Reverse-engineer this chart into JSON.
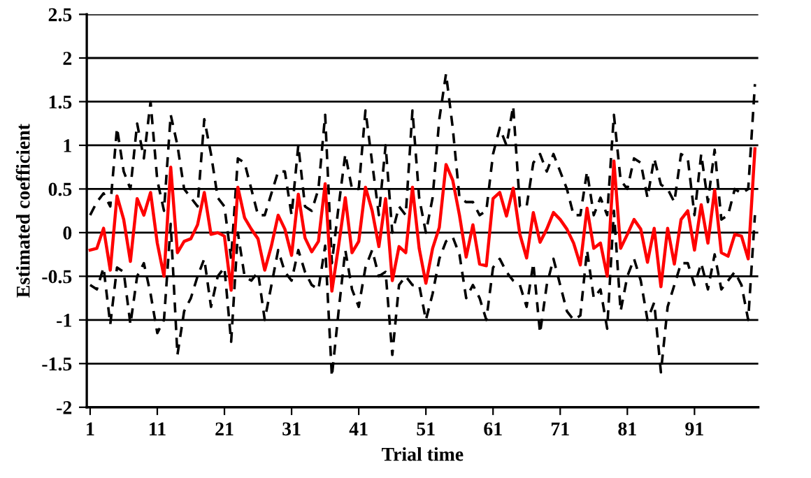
{
  "chart_data": {
    "type": "line",
    "xlabel": "Trial time",
    "ylabel": "Estimated coefficient",
    "x": [
      1,
      2,
      3,
      4,
      5,
      6,
      7,
      8,
      9,
      10,
      11,
      12,
      13,
      14,
      15,
      16,
      17,
      18,
      19,
      20,
      21,
      22,
      23,
      24,
      25,
      26,
      27,
      28,
      29,
      30,
      31,
      32,
      33,
      34,
      35,
      36,
      37,
      38,
      39,
      40,
      41,
      42,
      43,
      44,
      45,
      46,
      47,
      48,
      49,
      50,
      51,
      52,
      53,
      54,
      55,
      56,
      57,
      58,
      59,
      60,
      61,
      62,
      63,
      64,
      65,
      66,
      67,
      68,
      69,
      70,
      71,
      72,
      73,
      74,
      75,
      76,
      77,
      78,
      79,
      80,
      81,
      82,
      83,
      84,
      85,
      86,
      87,
      88,
      89,
      90,
      91,
      92,
      93,
      94,
      95,
      96,
      97,
      98,
      99,
      100
    ],
    "xlim": [
      0.5,
      100.5
    ],
    "xticks": [
      1,
      11,
      21,
      31,
      41,
      51,
      61,
      71,
      81,
      91
    ],
    "ylim": [
      -2,
      2.5
    ],
    "yticks": [
      -2,
      -1.5,
      -1,
      -0.5,
      0,
      0.5,
      1,
      1.5,
      2,
      2.5
    ],
    "grid": "y",
    "marker": "none",
    "series": [
      {
        "color": "#000000",
        "line_style": "dashed",
        "values": [
          0.2,
          0.35,
          0.45,
          0.3,
          1.2,
          0.7,
          0.5,
          1.25,
          0.85,
          1.5,
          0.6,
          0.25,
          1.35,
          1.0,
          0.5,
          0.4,
          0.3,
          1.3,
          0.9,
          0.4,
          0.3,
          -0.3,
          0.85,
          0.8,
          0.5,
          0.2,
          0.2,
          0.45,
          0.7,
          0.7,
          0.2,
          1.0,
          0.3,
          0.25,
          0.5,
          1.35,
          -0.35,
          0.3,
          0.9,
          0.5,
          0.5,
          1.4,
          0.8,
          0.2,
          1.0,
          0.0,
          0.3,
          0.2,
          1.4,
          0.4,
          0.0,
          0.4,
          1.3,
          1.82,
          1.2,
          0.4,
          0.35,
          0.35,
          0.2,
          0.25,
          0.9,
          1.2,
          1.0,
          1.45,
          0.3,
          0.3,
          0.8,
          0.9,
          0.7,
          0.9,
          0.7,
          0.5,
          0.2,
          0.2,
          0.7,
          0.2,
          0.4,
          0.2,
          1.35,
          0.6,
          0.5,
          0.85,
          0.8,
          0.4,
          0.85,
          0.55,
          0.5,
          0.35,
          0.9,
          0.85,
          0.2,
          0.9,
          0.35,
          0.95,
          0.15,
          0.2,
          0.5,
          0.45,
          0.5,
          1.7
        ]
      },
      {
        "color": "#000000",
        "line_style": "dashed",
        "values": [
          -0.6,
          -0.65,
          -0.4,
          -1.05,
          -0.4,
          -0.45,
          -1.05,
          -0.5,
          -0.35,
          -0.7,
          -1.15,
          -1.0,
          0.1,
          -1.4,
          -0.9,
          -0.75,
          -0.5,
          -0.3,
          -0.85,
          -0.5,
          -0.4,
          -1.25,
          0.0,
          -0.5,
          -0.55,
          -0.45,
          -1.0,
          -0.6,
          -0.2,
          -0.45,
          -0.55,
          -0.2,
          -0.45,
          -0.6,
          -0.65,
          -0.15,
          -1.65,
          -0.9,
          -0.2,
          -0.65,
          -0.85,
          -0.4,
          -0.2,
          -0.5,
          -0.45,
          -1.4,
          -0.6,
          -0.5,
          -0.6,
          -0.6,
          -1.0,
          -0.7,
          -0.3,
          -0.1,
          -0.05,
          -0.25,
          -0.75,
          -0.6,
          -0.75,
          -1.0,
          -0.4,
          -0.3,
          -0.45,
          -0.55,
          -0.6,
          -0.85,
          -0.35,
          -1.15,
          -0.6,
          -0.3,
          -0.6,
          -0.9,
          -1.0,
          -0.95,
          -0.2,
          -0.75,
          -0.65,
          -1.1,
          0.25,
          -0.9,
          -0.5,
          -0.3,
          -0.55,
          -1.0,
          -0.8,
          -1.6,
          -0.85,
          -0.6,
          -0.35,
          -0.35,
          -0.6,
          -0.35,
          -0.65,
          -0.25,
          -0.65,
          -0.55,
          -0.45,
          -0.6,
          -1.0,
          0.2
        ]
      },
      {
        "color": "#ff0000",
        "line_style": "solid",
        "values": [
          -0.2,
          -0.18,
          0.05,
          -0.43,
          0.42,
          0.15,
          -0.33,
          0.39,
          0.2,
          0.46,
          -0.12,
          -0.5,
          0.75,
          -0.23,
          -0.1,
          -0.07,
          0.09,
          0.46,
          -0.02,
          0,
          -0.04,
          -0.66,
          0.52,
          0.17,
          0.04,
          -0.07,
          -0.43,
          -0.15,
          0.2,
          0.04,
          -0.26,
          0.44,
          -0.06,
          -0.22,
          -0.1,
          0.56,
          -0.67,
          -0.15,
          0.4,
          -0.23,
          -0.1,
          0.52,
          0.25,
          -0.16,
          0.39,
          -0.55,
          -0.16,
          -0.23,
          0.52,
          -0.18,
          -0.58,
          -0.18,
          0.06,
          0.78,
          0.6,
          0.2,
          -0.28,
          0.09,
          -0.36,
          -0.38,
          0.39,
          0.46,
          0.19,
          0.51,
          -0.02,
          -0.29,
          0.23,
          -0.11,
          0.04,
          0.23,
          0.15,
          0.04,
          -0.12,
          -0.37,
          0.28,
          -0.18,
          -0.12,
          -0.5,
          0.82,
          -0.18,
          -0.02,
          0.15,
          0.04,
          -0.34,
          0.05,
          -0.62,
          0.05,
          -0.36,
          0.15,
          0.25,
          -0.2,
          0.32,
          -0.12,
          0.49,
          -0.23,
          -0.27,
          -0.02,
          -0.04,
          -0.3,
          0.96
        ]
      }
    ]
  }
}
